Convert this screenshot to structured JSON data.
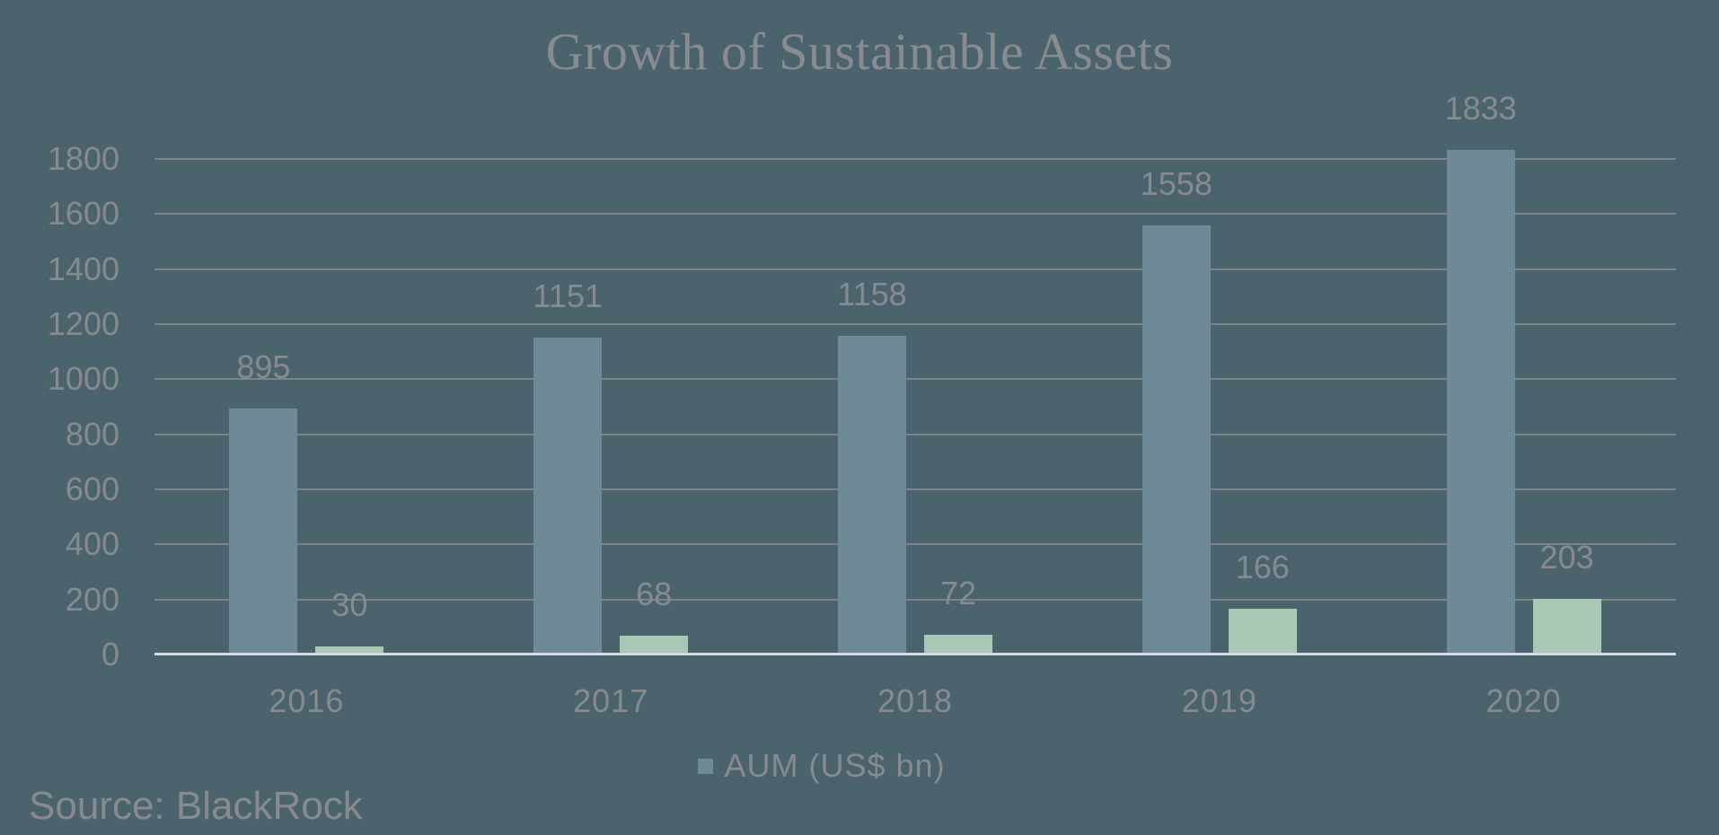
{
  "title": "Growth of Sustainable Assets",
  "source": "Source: BlackRock",
  "legend": [
    {
      "label": "AUM (US$ bn)",
      "color": "#6f8a97"
    }
  ],
  "chart_data": {
    "type": "bar",
    "title": "Growth of Sustainable Assets",
    "categories": [
      "2016",
      "2017",
      "2018",
      "2019",
      "2020"
    ],
    "series": [
      {
        "name": "AUM (US$ bn)",
        "color": "#6f8a97",
        "values": [
          895,
          1151,
          1158,
          1558,
          1833
        ]
      },
      {
        "name": "",
        "color": "#aac8b6",
        "values": [
          30,
          68,
          72,
          166,
          203
        ]
      }
    ],
    "xlabel": "",
    "ylabel": "",
    "ylim": [
      0,
      1800
    ],
    "ytick_step": 200,
    "grid": true,
    "data_labels": true,
    "legend_position": "bottom-center",
    "annotations": [
      "Source: BlackRock"
    ]
  },
  "colors": {
    "background": "#4b636d",
    "gridline": "#7e8387",
    "axis_line": "#d9dbdf",
    "text": "#878a8e",
    "title_text": "#8a8b8f",
    "bar_blue": "#6f8a97",
    "bar_green": "#aac8b6"
  }
}
